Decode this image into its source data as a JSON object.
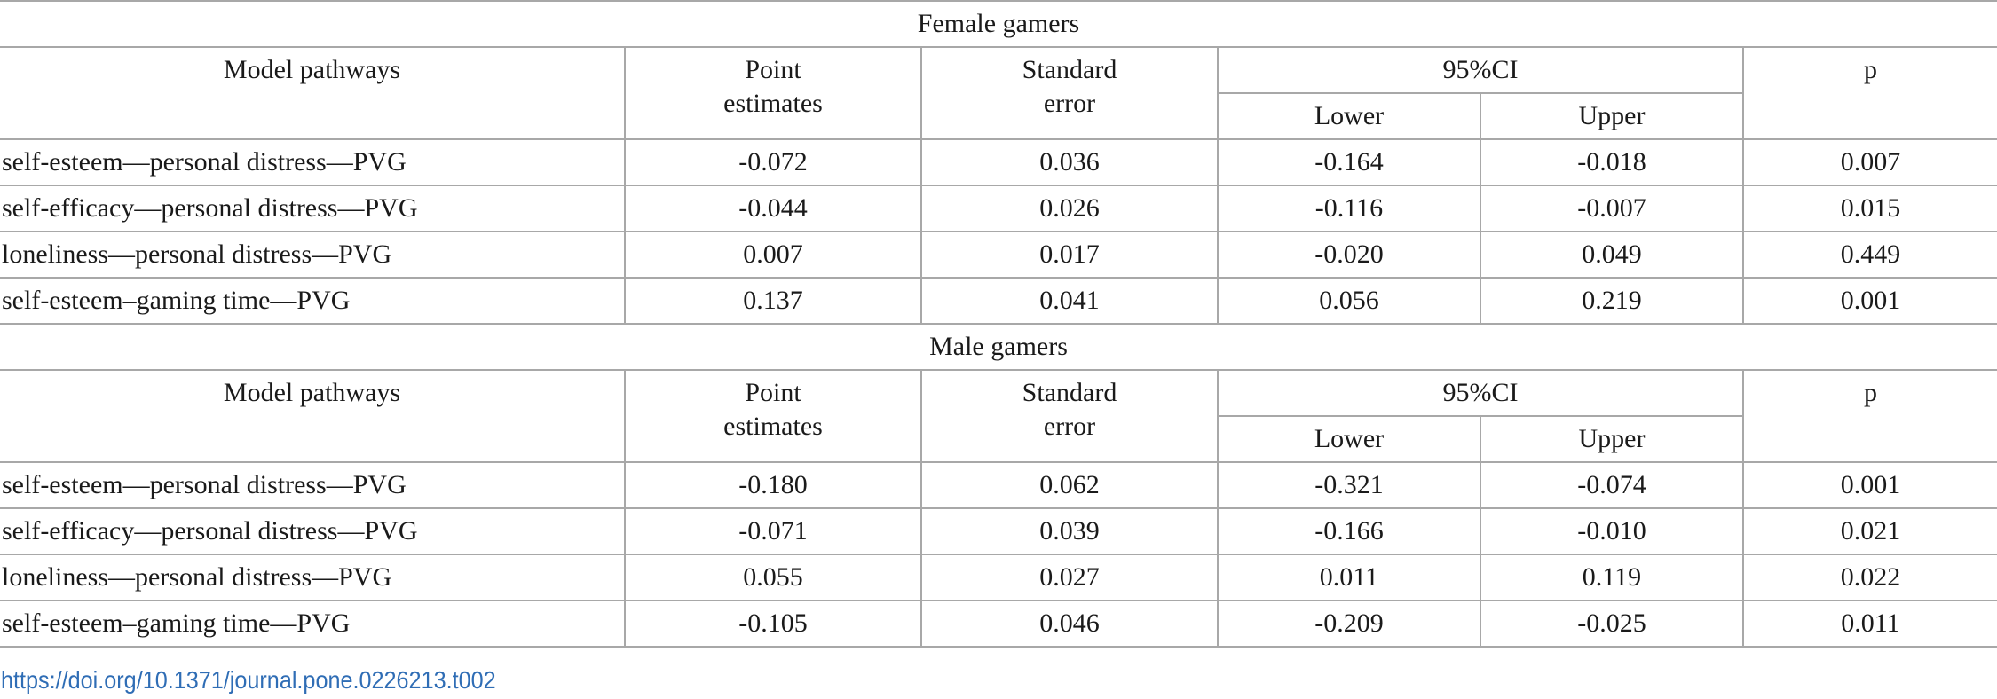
{
  "sections": [
    {
      "title": "Female gamers",
      "headers": {
        "pathway": "Model pathways",
        "point_line1": "Point",
        "point_line2": "estimates",
        "se_line1": "Standard",
        "se_line2": "error",
        "ci": "95%CI",
        "lower": "Lower",
        "upper": "Upper",
        "p": "p"
      },
      "rows": [
        {
          "pathway": "self-esteem—personal distress—PVG",
          "point": "-0.072",
          "se": "0.036",
          "lower": "-0.164",
          "upper": "-0.018",
          "p": "0.007"
        },
        {
          "pathway": "self-efficacy—personal distress—PVG",
          "point": "-0.044",
          "se": "0.026",
          "lower": "-0.116",
          "upper": "-0.007",
          "p": "0.015"
        },
        {
          "pathway": "loneliness—personal distress—PVG",
          "point": "0.007",
          "se": "0.017",
          "lower": "-0.020",
          "upper": "0.049",
          "p": "0.449"
        },
        {
          "pathway": "self-esteem–gaming time—PVG",
          "point": "0.137",
          "se": "0.041",
          "lower": "0.056",
          "upper": "0.219",
          "p": "0.001"
        }
      ]
    },
    {
      "title": "Male gamers",
      "headers": {
        "pathway": "Model pathways",
        "point_line1": "Point",
        "point_line2": "estimates",
        "se_line1": "Standard",
        "se_line2": "error",
        "ci": "95%CI",
        "lower": "Lower",
        "upper": "Upper",
        "p": "p"
      },
      "rows": [
        {
          "pathway": "self-esteem—personal distress—PVG",
          "point": "-0.180",
          "se": "0.062",
          "lower": "-0.321",
          "upper": "-0.074",
          "p": "0.001"
        },
        {
          "pathway": "self-efficacy—personal distress—PVG",
          "point": "-0.071",
          "se": "0.039",
          "lower": "-0.166",
          "upper": "-0.010",
          "p": "0.021"
        },
        {
          "pathway": "loneliness—personal distress—PVG",
          "point": "0.055",
          "se": "0.027",
          "lower": "0.011",
          "upper": "0.119",
          "p": "0.022"
        },
        {
          "pathway": "self-esteem–gaming time—PVG",
          "point": "-0.105",
          "se": "0.046",
          "lower": "-0.209",
          "upper": "-0.025",
          "p": "0.011"
        }
      ]
    }
  ],
  "doi": "https://doi.org/10.1371/journal.pone.0226213.t002"
}
